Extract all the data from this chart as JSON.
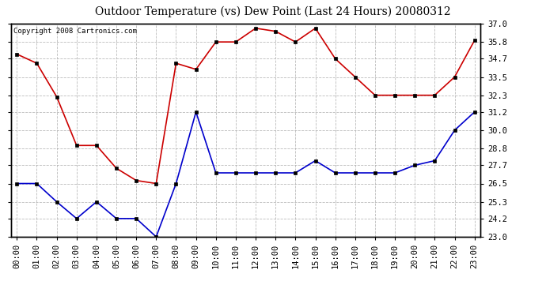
{
  "title": "Outdoor Temperature (vs) Dew Point (Last 24 Hours) 20080312",
  "copyright_text": "Copyright 2008 Cartronics.com",
  "hours": [
    "00:00",
    "01:00",
    "02:00",
    "03:00",
    "04:00",
    "05:00",
    "06:00",
    "07:00",
    "08:00",
    "09:00",
    "10:00",
    "11:00",
    "12:00",
    "13:00",
    "14:00",
    "15:00",
    "16:00",
    "17:00",
    "18:00",
    "19:00",
    "20:00",
    "21:00",
    "22:00",
    "23:00"
  ],
  "temp_red": [
    35.0,
    34.4,
    32.2,
    29.0,
    29.0,
    27.5,
    26.7,
    26.5,
    34.4,
    34.0,
    35.8,
    35.8,
    36.7,
    36.5,
    35.8,
    36.7,
    34.7,
    33.5,
    32.3,
    32.3,
    32.3,
    32.3,
    33.5,
    35.9
  ],
  "dew_blue": [
    26.5,
    26.5,
    25.3,
    24.2,
    25.3,
    24.2,
    24.2,
    23.0,
    26.5,
    31.2,
    27.2,
    27.2,
    27.2,
    27.2,
    27.2,
    28.0,
    27.2,
    27.2,
    27.2,
    27.2,
    27.7,
    28.0,
    30.0,
    31.2
  ],
  "ylim_min": 23.0,
  "ylim_max": 37.0,
  "yticks": [
    23.0,
    24.2,
    25.3,
    26.5,
    27.7,
    28.8,
    30.0,
    31.2,
    32.3,
    33.5,
    34.7,
    35.8,
    37.0
  ],
  "ytick_labels": [
    "23.0",
    "24.2",
    "25.3",
    "26.5",
    "27.7",
    "28.8",
    "30.0",
    "31.2",
    "32.3",
    "33.5",
    "34.7",
    "35.8",
    "37.0"
  ],
  "line_color_red": "#cc0000",
  "line_color_blue": "#0000cc",
  "bg_color": "#ffffff",
  "plot_bg_color": "#ffffff",
  "grid_color": "#aaaaaa",
  "title_fontsize": 10,
  "tick_fontsize": 7.5,
  "copyright_fontsize": 6.5
}
